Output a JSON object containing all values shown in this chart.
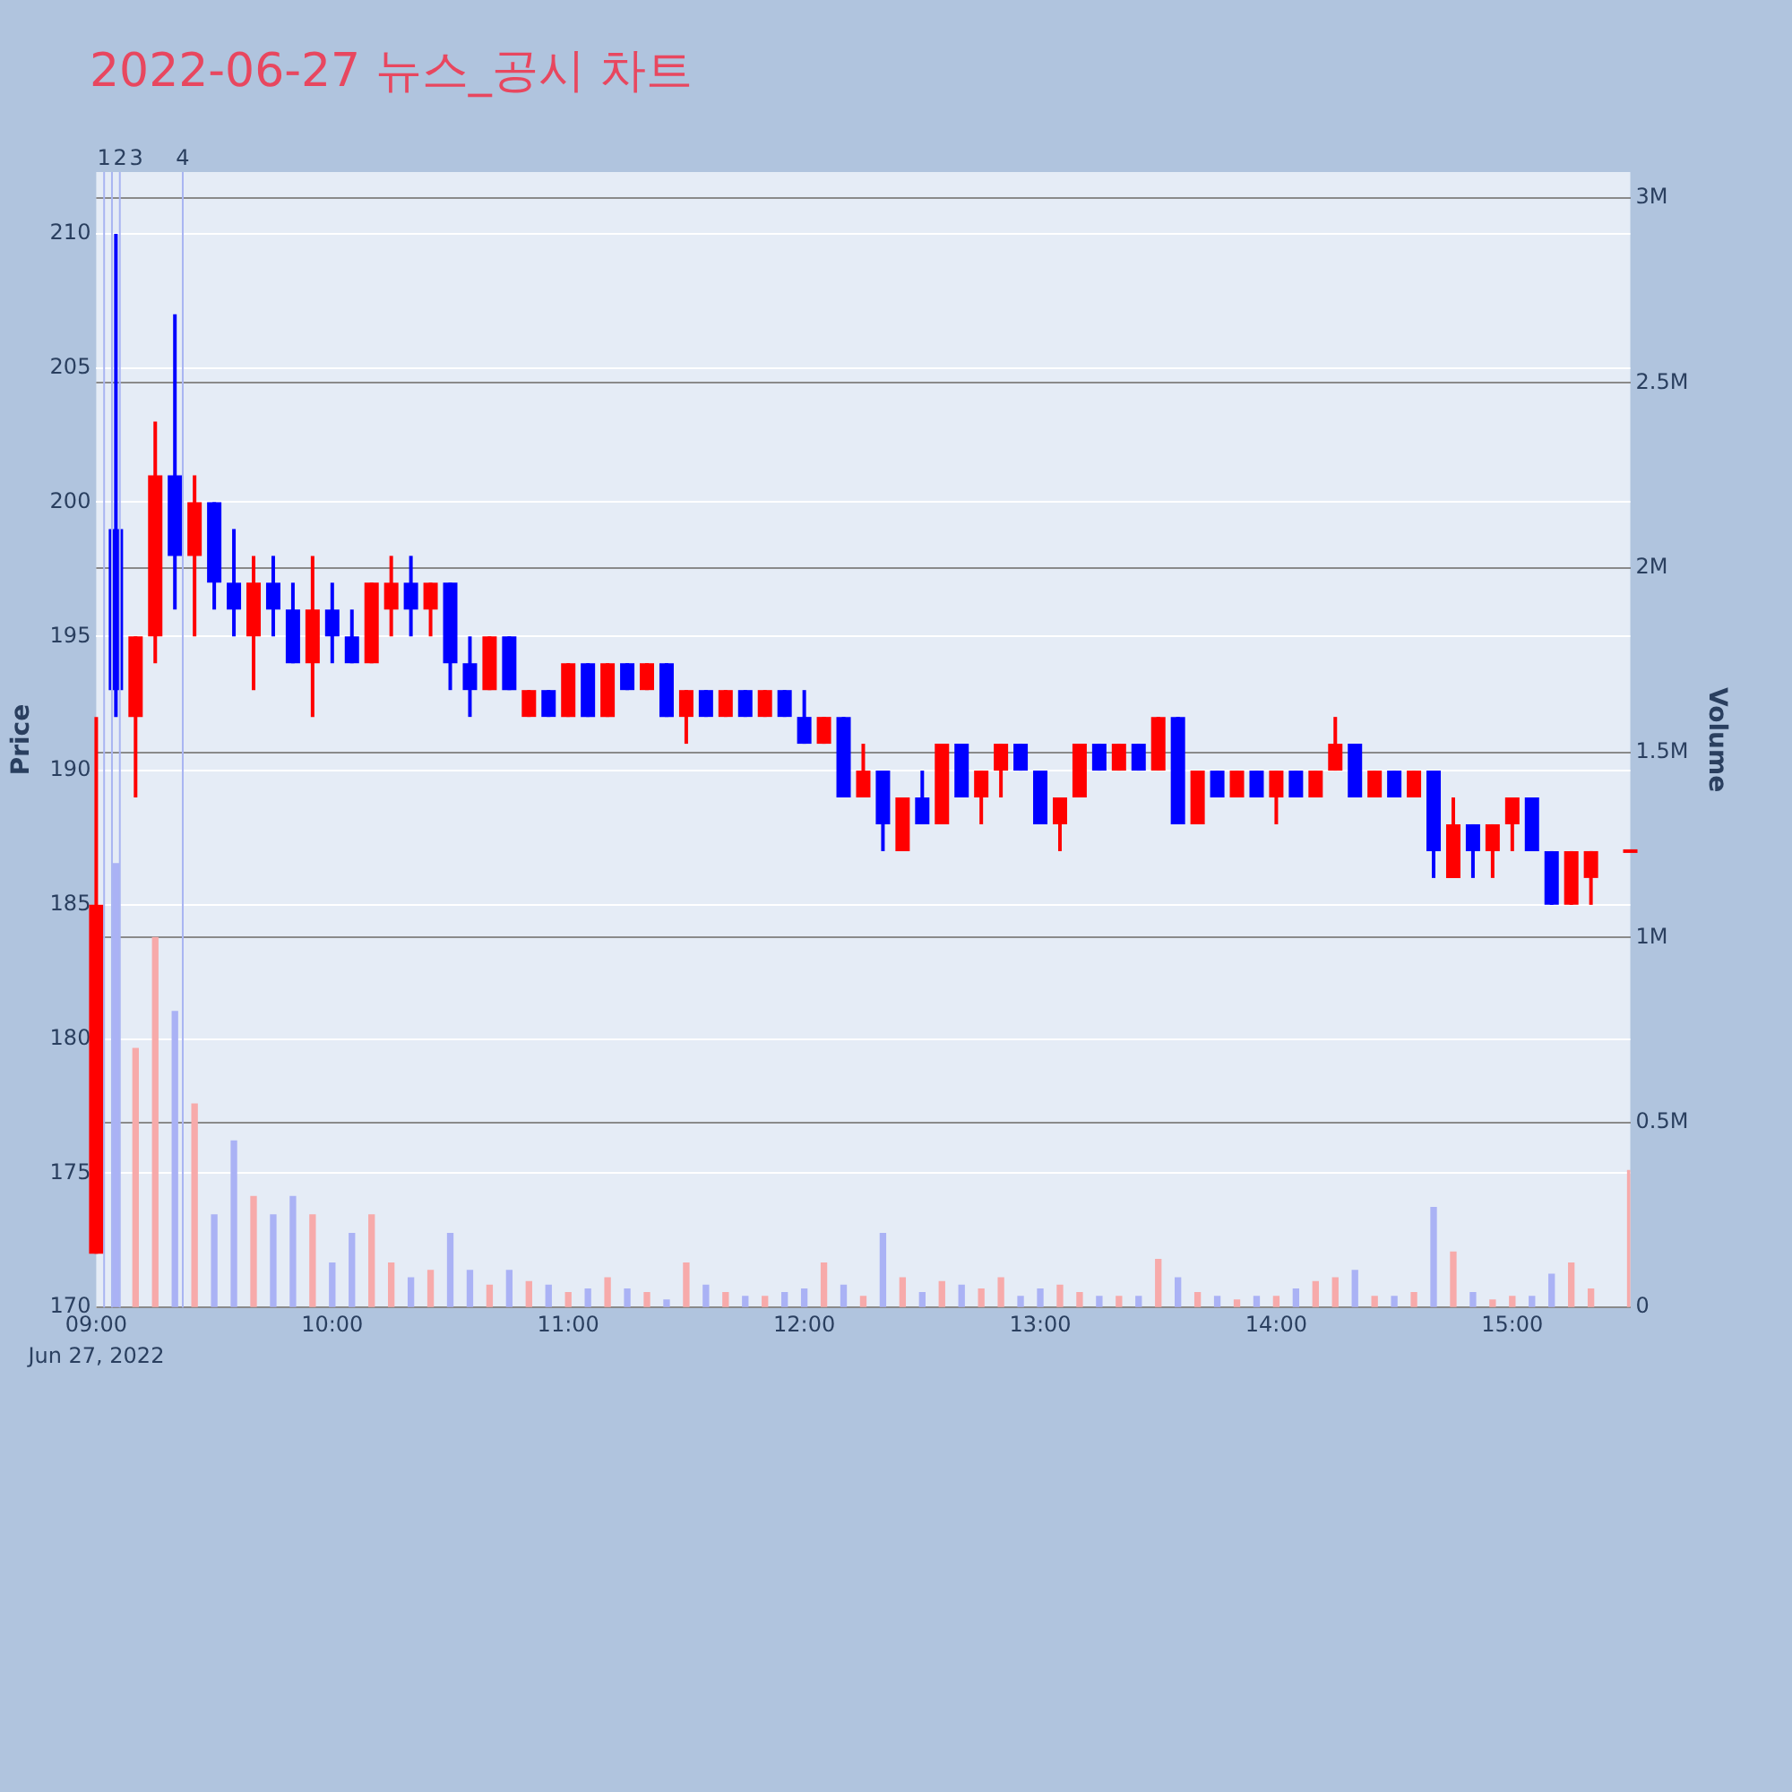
{
  "chart_data": {
    "type": "candlestick",
    "title": "2022-06-27 뉴스_공시 차트",
    "ylabel": "Price",
    "y2label": "Volume",
    "annotations": [
      "Jun 27, 2022"
    ],
    "x": [
      "2022-06-27T09:00",
      "2022-06-27T09:05",
      "2022-06-27T09:10",
      "2022-06-27T09:15",
      "2022-06-27T09:20",
      "2022-06-27T09:25",
      "2022-06-27T09:30",
      "2022-06-27T09:35",
      "2022-06-27T09:40",
      "2022-06-27T09:45",
      "2022-06-27T09:50",
      "2022-06-27T09:55",
      "2022-06-27T10:00",
      "2022-06-27T10:05",
      "2022-06-27T10:10",
      "2022-06-27T10:15",
      "2022-06-27T10:20",
      "2022-06-27T10:25",
      "2022-06-27T10:30",
      "2022-06-27T10:35",
      "2022-06-27T10:40",
      "2022-06-27T10:45",
      "2022-06-27T10:50",
      "2022-06-27T10:55",
      "2022-06-27T11:00",
      "2022-06-27T11:05",
      "2022-06-27T11:10",
      "2022-06-27T11:15",
      "2022-06-27T11:20",
      "2022-06-27T11:25",
      "2022-06-27T11:30",
      "2022-06-27T11:35",
      "2022-06-27T11:40",
      "2022-06-27T11:45",
      "2022-06-27T11:50",
      "2022-06-27T11:55",
      "2022-06-27T12:00",
      "2022-06-27T12:05",
      "2022-06-27T12:10",
      "2022-06-27T12:15",
      "2022-06-27T12:20",
      "2022-06-27T12:25",
      "2022-06-27T12:30",
      "2022-06-27T12:35",
      "2022-06-27T12:40",
      "2022-06-27T12:45",
      "2022-06-27T12:50",
      "2022-06-27T12:55",
      "2022-06-27T13:00",
      "2022-06-27T13:05",
      "2022-06-27T13:10",
      "2022-06-27T13:15",
      "2022-06-27T13:20",
      "2022-06-27T13:25",
      "2022-06-27T13:30",
      "2022-06-27T13:35",
      "2022-06-27T13:40",
      "2022-06-27T13:45",
      "2022-06-27T13:50",
      "2022-06-27T13:55",
      "2022-06-27T14:00",
      "2022-06-27T14:05",
      "2022-06-27T14:10",
      "2022-06-27T14:15",
      "2022-06-27T14:20",
      "2022-06-27T14:25",
      "2022-06-27T14:30",
      "2022-06-27T14:35",
      "2022-06-27T14:40",
      "2022-06-27T14:45",
      "2022-06-27T14:50",
      "2022-06-27T14:55",
      "2022-06-27T15:00",
      "2022-06-27T15:05",
      "2022-06-27T15:10",
      "2022-06-27T15:15",
      "2022-06-27T15:20",
      "2022-06-27T15:30"
    ],
    "series": [
      {
        "ohlc": [
          [
            172,
            192,
            172,
            185
          ],
          [
            199,
            210,
            192,
            193
          ],
          [
            192,
            195,
            189,
            195
          ],
          [
            195,
            203,
            194,
            201
          ],
          [
            201,
            207,
            196,
            198
          ],
          [
            198,
            201,
            195,
            200
          ],
          [
            200,
            200,
            196,
            197
          ],
          [
            197,
            199,
            195,
            196
          ],
          [
            195,
            198,
            193,
            197
          ],
          [
            197,
            198,
            195,
            196
          ],
          [
            196,
            197,
            194,
            194
          ],
          [
            194,
            198,
            192,
            196
          ],
          [
            196,
            197,
            194,
            195
          ],
          [
            195,
            196,
            194,
            194
          ],
          [
            194,
            197,
            194,
            197
          ],
          [
            196,
            198,
            195,
            197
          ],
          [
            197,
            198,
            195,
            196
          ],
          [
            196,
            197,
            195,
            197
          ],
          [
            197,
            197,
            193,
            194
          ],
          [
            194,
            195,
            192,
            193
          ],
          [
            193,
            195,
            193,
            195
          ],
          [
            195,
            195,
            193,
            193
          ],
          [
            192,
            193,
            192,
            193
          ],
          [
            193,
            193,
            192,
            192
          ],
          [
            192,
            194,
            192,
            194
          ],
          [
            194,
            194,
            192,
            192
          ],
          [
            192,
            194,
            192,
            194
          ],
          [
            194,
            194,
            193,
            193
          ],
          [
            193,
            194,
            193,
            194
          ],
          [
            194,
            194,
            192,
            192
          ],
          [
            192,
            193,
            191,
            193
          ],
          [
            193,
            193,
            192,
            192
          ],
          [
            192,
            193,
            192,
            193
          ],
          [
            193,
            193,
            192,
            192
          ],
          [
            192,
            193,
            192,
            193
          ],
          [
            193,
            193,
            192,
            192
          ],
          [
            192,
            193,
            191,
            191
          ],
          [
            191,
            192,
            191,
            192
          ],
          [
            192,
            192,
            189,
            189
          ],
          [
            189,
            191,
            189,
            190
          ],
          [
            190,
            190,
            187,
            188
          ],
          [
            187,
            189,
            187,
            189
          ],
          [
            189,
            190,
            188,
            188
          ],
          [
            188,
            191,
            188,
            191
          ],
          [
            191,
            191,
            189,
            189
          ],
          [
            189,
            190,
            188,
            190
          ],
          [
            190,
            191,
            189,
            191
          ],
          [
            191,
            191,
            190,
            190
          ],
          [
            190,
            190,
            188,
            188
          ],
          [
            188,
            189,
            187,
            189
          ],
          [
            189,
            191,
            189,
            191
          ],
          [
            191,
            191,
            190,
            190
          ],
          [
            190,
            191,
            190,
            191
          ],
          [
            191,
            191,
            190,
            190
          ],
          [
            190,
            192,
            190,
            192
          ],
          [
            192,
            192,
            188,
            188
          ],
          [
            188,
            190,
            188,
            190
          ],
          [
            190,
            190,
            189,
            189
          ],
          [
            189,
            190,
            189,
            190
          ],
          [
            190,
            190,
            189,
            189
          ],
          [
            189,
            190,
            188,
            190
          ],
          [
            190,
            190,
            189,
            189
          ],
          [
            189,
            190,
            189,
            190
          ],
          [
            190,
            192,
            190,
            191
          ],
          [
            191,
            191,
            189,
            189
          ],
          [
            189,
            190,
            189,
            190
          ],
          [
            190,
            190,
            189,
            189
          ],
          [
            189,
            190,
            189,
            190
          ],
          [
            190,
            190,
            186,
            187
          ],
          [
            186,
            189,
            186,
            188
          ],
          [
            188,
            188,
            186,
            187
          ],
          [
            187,
            188,
            186,
            188
          ],
          [
            188,
            189,
            187,
            189
          ],
          [
            189,
            189,
            187,
            187
          ],
          [
            187,
            187,
            185,
            185
          ],
          [
            185,
            187,
            185,
            187
          ],
          [
            186,
            187,
            185,
            187
          ],
          [
            187,
            187,
            187,
            187
          ]
        ],
        "colors": [
          "#ff0000",
          "#0000ff",
          "#ff0000",
          "#ff0000",
          "#0000ff",
          "#ff0000",
          "#0000ff",
          "#0000ff",
          "#ff0000",
          "#0000ff",
          "#0000ff",
          "#ff0000",
          "#0000ff",
          "#0000ff",
          "#ff0000",
          "#ff0000",
          "#0000ff",
          "#ff0000",
          "#0000ff",
          "#0000ff",
          "#ff0000",
          "#0000ff",
          "#ff0000",
          "#0000ff",
          "#ff0000",
          "#0000ff",
          "#ff0000",
          "#0000ff",
          "#ff0000",
          "#0000ff",
          "#ff0000",
          "#0000ff",
          "#ff0000",
          "#0000ff",
          "#ff0000",
          "#0000ff",
          "#0000ff",
          "#ff0000",
          "#0000ff",
          "#ff0000",
          "#0000ff",
          "#ff0000",
          "#0000ff",
          "#ff0000",
          "#0000ff",
          "#ff0000",
          "#ff0000",
          "#0000ff",
          "#0000ff",
          "#ff0000",
          "#ff0000",
          "#0000ff",
          "#ff0000",
          "#0000ff",
          "#ff0000",
          "#0000ff",
          "#ff0000",
          "#0000ff",
          "#ff0000",
          "#0000ff",
          "#ff0000",
          "#0000ff",
          "#ff0000",
          "#ff0000",
          "#0000ff",
          "#ff0000",
          "#0000ff",
          "#ff0000",
          "#0000ff",
          "#ff0000",
          "#0000ff",
          "#ff0000",
          "#ff0000",
          "#0000ff",
          "#0000ff",
          "#ff0000",
          "#ff0000",
          "#ff0000"
        ]
      },
      {
        "type": "bar",
        "axis": "y2",
        "values": [
          null,
          1200000,
          700000,
          1000000,
          800000,
          550000,
          250000,
          450000,
          300000,
          250000,
          300000,
          250000,
          120000,
          200000,
          250000,
          120000,
          80000,
          100000,
          200000,
          100000,
          60000,
          100000,
          70000,
          60000,
          40000,
          50000,
          80000,
          50000,
          40000,
          20000,
          120000,
          60000,
          40000,
          30000,
          30000,
          40000,
          50000,
          120000,
          60000,
          30000,
          200000,
          80000,
          40000,
          70000,
          60000,
          50000,
          80000,
          30000,
          50000,
          60000,
          40000,
          30000,
          30000,
          30000,
          130000,
          80000,
          40000,
          30000,
          20000,
          30000,
          30000,
          50000,
          70000,
          80000,
          100000,
          30000,
          30000,
          40000,
          270000,
          150000,
          40000,
          20000,
          30000,
          30000,
          90000,
          120000,
          50000,
          370000
        ],
        "colors": [
          "#f7aaaa",
          "#aab2f5",
          "#f7aaaa",
          "#f7aaaa",
          "#aab2f5",
          "#f7aaaa",
          "#aab2f5",
          "#aab2f5",
          "#f7aaaa",
          "#aab2f5",
          "#aab2f5",
          "#f7aaaa",
          "#aab2f5",
          "#aab2f5",
          "#f7aaaa",
          "#f7aaaa",
          "#aab2f5",
          "#f7aaaa",
          "#aab2f5",
          "#aab2f5",
          "#f7aaaa",
          "#aab2f5",
          "#f7aaaa",
          "#aab2f5",
          "#f7aaaa",
          "#aab2f5",
          "#f7aaaa",
          "#aab2f5",
          "#f7aaaa",
          "#aab2f5",
          "#f7aaaa",
          "#aab2f5",
          "#f7aaaa",
          "#aab2f5",
          "#f7aaaa",
          "#aab2f5",
          "#aab2f5",
          "#f7aaaa",
          "#aab2f5",
          "#f7aaaa",
          "#aab2f5",
          "#f7aaaa",
          "#aab2f5",
          "#f7aaaa",
          "#aab2f5",
          "#f7aaaa",
          "#f7aaaa",
          "#aab2f5",
          "#aab2f5",
          "#f7aaaa",
          "#f7aaaa",
          "#aab2f5",
          "#f7aaaa",
          "#aab2f5",
          "#f7aaaa",
          "#aab2f5",
          "#f7aaaa",
          "#aab2f5",
          "#f7aaaa",
          "#aab2f5",
          "#f7aaaa",
          "#aab2f5",
          "#f7aaaa",
          "#f7aaaa",
          "#aab2f5",
          "#f7aaaa",
          "#aab2f5",
          "#f7aaaa",
          "#aab2f5",
          "#f7aaaa",
          "#aab2f5",
          "#f7aaaa",
          "#f7aaaa",
          "#aab2f5",
          "#aab2f5",
          "#f7aaaa",
          "#f7aaaa",
          "#f7aaaa"
        ]
      }
    ],
    "xlim": [
      "2022-06-27T09:00",
      "2022-06-27T15:30"
    ],
    "xticks": [
      {
        "value": "2022-06-27T09:00",
        "label": "09:00"
      },
      {
        "value": "2022-06-27T10:00",
        "label": "10:00"
      },
      {
        "value": "2022-06-27T11:00",
        "label": "11:00"
      },
      {
        "value": "2022-06-27T12:00",
        "label": "12:00"
      },
      {
        "value": "2022-06-27T13:00",
        "label": "13:00"
      },
      {
        "value": "2022-06-27T14:00",
        "label": "14:00"
      },
      {
        "value": "2022-06-27T15:00",
        "label": "15:00"
      }
    ],
    "ylim": [
      170,
      212.3
    ],
    "yticks": [
      170,
      175,
      180,
      185,
      190,
      195,
      200,
      205,
      210
    ],
    "y2lim": [
      0,
      3070000
    ],
    "y2ticks": [
      {
        "value": 0,
        "label": "0"
      },
      {
        "value": 500000,
        "label": "0.5M"
      },
      {
        "value": 1000000,
        "label": "1M"
      },
      {
        "value": 1500000,
        "label": "1.5M"
      },
      {
        "value": 2000000,
        "label": "2M"
      },
      {
        "value": 2500000,
        "label": "2.5M"
      },
      {
        "value": 3000000,
        "label": "3M"
      }
    ],
    "ref_lines": [
      {
        "axis": "x",
        "value": "2022-06-27T09:02",
        "label": "1",
        "color": "#a9b5f2"
      },
      {
        "axis": "x",
        "value": "2022-06-27T09:04",
        "label": "2",
        "color": "#a9b5f2"
      },
      {
        "axis": "x",
        "value": "2022-06-27T09:06",
        "label": "3",
        "color": "#a9b5f2"
      },
      {
        "axis": "x",
        "value": "2022-06-27T09:22",
        "label": "4",
        "color": "#a9b5f2"
      }
    ],
    "grid": "y",
    "legend": false
  }
}
